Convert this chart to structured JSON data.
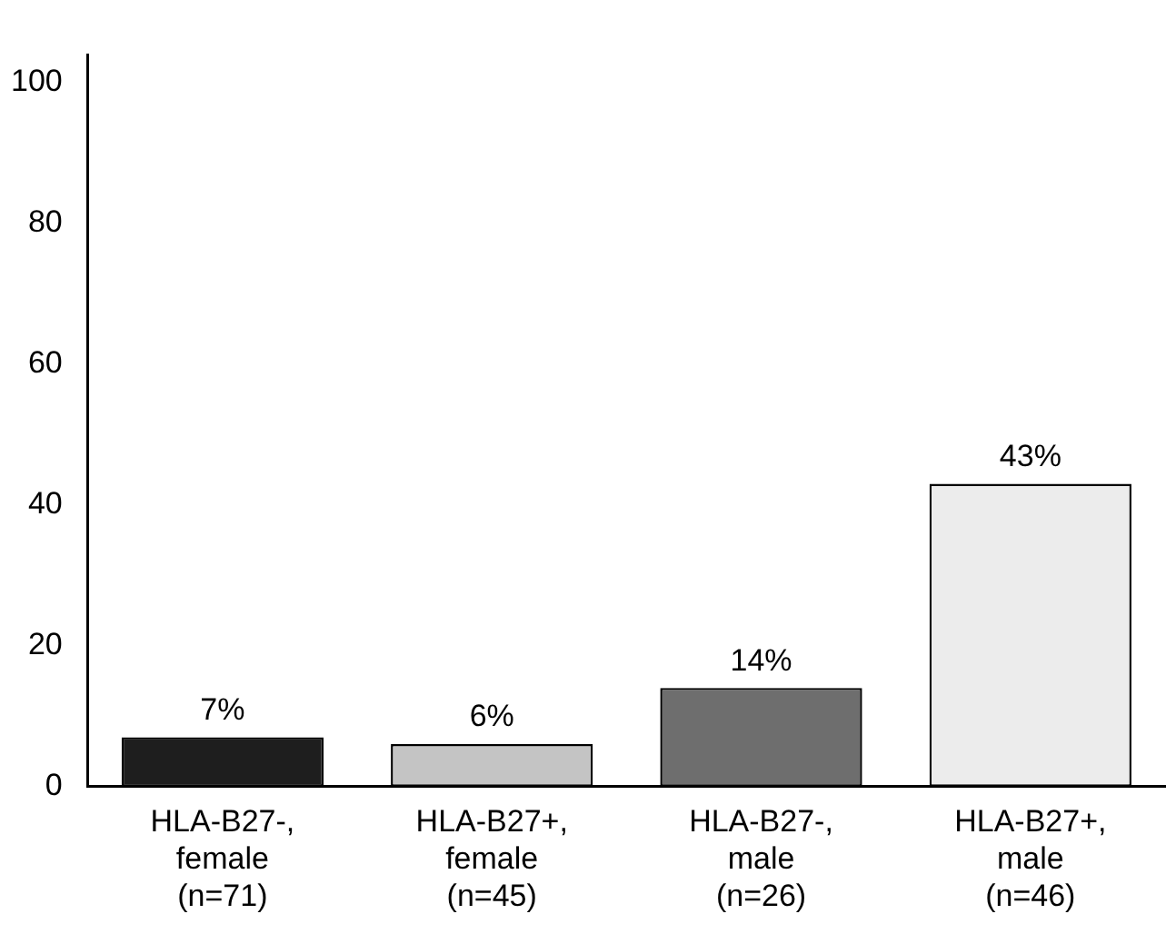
{
  "chart_data": {
    "type": "bar",
    "categories": [
      "HLA-B27-, female (n=71)",
      "HLA-B27+, female (n=45)",
      "HLA-B27-, male (n=26)",
      "HLA-B27+, male (n=46)"
    ],
    "values": [
      7,
      6,
      14,
      43
    ],
    "colors": [
      "#1e1e1e",
      "#c4c4c4",
      "#6e6e6e",
      "#ececec"
    ],
    "value_labels": [
      "7%",
      "6%",
      "14%",
      "43%"
    ],
    "ylim": [
      0,
      104
    ],
    "yticks": [
      0,
      20,
      40,
      60,
      80,
      100
    ],
    "grid": false,
    "legend": false
  }
}
